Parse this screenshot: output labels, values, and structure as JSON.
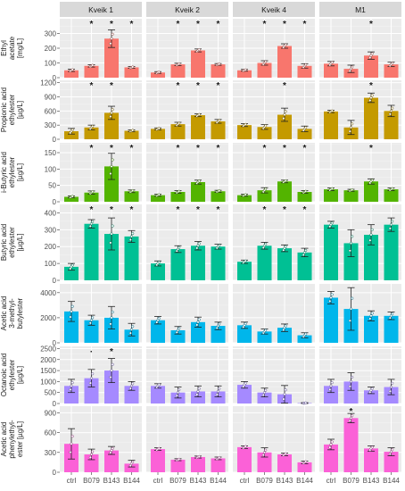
{
  "chart_data": {
    "type": "bar",
    "facets": [
      "Kveik 1",
      "Kveik 2",
      "Kveik 4",
      "M1"
    ],
    "categories": [
      "ctrl",
      "B079",
      "B143",
      "B144"
    ],
    "rows": [
      {
        "label_lines": [
          "Ethyl",
          "acetate",
          "[mg/L]"
        ],
        "color": "#F8766D",
        "ylim": [
          0,
          400
        ],
        "ticks": [
          0,
          100,
          200,
          300
        ],
        "tick_labels": [
          "0",
          "100",
          "200",
          "300"
        ],
        "panels": [
          {
            "values": [
              50,
              80,
              265,
              70
            ],
            "errors": [
              8,
              8,
              60,
              6
            ],
            "stars": [
              "",
              "*",
              "*",
              "*"
            ]
          },
          {
            "values": [
              35,
              90,
              185,
              90
            ],
            "errors": [
              6,
              8,
              10,
              6
            ],
            "stars": [
              "",
              "*",
              "*",
              "*"
            ]
          },
          {
            "values": [
              50,
              100,
              215,
              80
            ],
            "errors": [
              6,
              15,
              15,
              15
            ],
            "stars": [
              "",
              "*",
              "*",
              "*"
            ]
          },
          {
            "values": [
              95,
              60,
              150,
              90
            ],
            "errors": [
              15,
              25,
              25,
              15
            ],
            "stars": [
              "",
              "",
              "*",
              ""
            ]
          }
        ]
      },
      {
        "label_lines": [
          "Propionic acid",
          "ethylester",
          "[µg/L]"
        ],
        "color": "#C49A00",
        "ylim": [
          0,
          1250
        ],
        "ticks": [
          0,
          300,
          600,
          900,
          1200
        ],
        "tick_labels": [
          "0",
          "300",
          "600",
          "900",
          "1200"
        ],
        "panels": [
          {
            "values": [
              170,
              250,
              560,
              180
            ],
            "errors": [
              60,
              50,
              140,
              20
            ],
            "stars": [
              "",
              "*",
              "*",
              ""
            ]
          },
          {
            "values": [
              220,
              320,
              510,
              380
            ],
            "errors": [
              20,
              40,
              30,
              40
            ],
            "stars": [
              "",
              "*",
              "*",
              "*"
            ]
          },
          {
            "values": [
              300,
              260,
              520,
              220
            ],
            "errors": [
              30,
              50,
              140,
              60
            ],
            "stars": [
              "",
              "",
              "*",
              ""
            ]
          },
          {
            "values": [
              590,
              250,
              880,
              600
            ],
            "errors": [
              25,
              150,
              100,
              120
            ],
            "stars": [
              "",
              "",
              "*",
              ""
            ]
          }
        ]
      },
      {
        "label_lines": [
          "i-Butyric acid",
          "ethylester",
          "[µg/L]"
        ],
        "color": "#53B400",
        "ylim": [
          0,
          180
        ],
        "ticks": [
          0,
          50,
          100,
          150
        ],
        "tick_labels": [
          "0",
          "50",
          "100",
          "150"
        ],
        "panels": [
          {
            "values": [
              15,
              28,
              108,
              32
            ],
            "errors": [
              3,
              5,
              40,
              4
            ],
            "stars": [
              "",
              "*",
              "*",
              "*"
            ]
          },
          {
            "values": [
              20,
              30,
              60,
              32
            ],
            "errors": [
              3,
              4,
              6,
              3
            ],
            "stars": [
              "",
              "*",
              "*",
              "*"
            ]
          },
          {
            "values": [
              20,
              35,
              62,
              30
            ],
            "errors": [
              3,
              8,
              4,
              4
            ],
            "stars": [
              "",
              "*",
              "*",
              "*"
            ]
          },
          {
            "values": [
              38,
              35,
              62,
              38
            ],
            "errors": [
              4,
              3,
              8,
              4
            ],
            "stars": [
              "",
              "",
              "*",
              ""
            ]
          }
        ]
      },
      {
        "label_lines": [
          "Butyric acid",
          "ethylester",
          "[µg/L]"
        ],
        "color": "#00C094",
        "ylim": [
          0,
          450
        ],
        "ticks": [
          0,
          100,
          200,
          300,
          400
        ],
        "tick_labels": [
          "0",
          "100",
          "200",
          "300",
          "400"
        ],
        "panels": [
          {
            "values": [
              80,
              335,
              275,
              260
            ],
            "errors": [
              20,
              25,
              95,
              35
            ],
            "stars": [
              "",
              "*",
              "*",
              "*"
            ]
          },
          {
            "values": [
              100,
              185,
              205,
              200
            ],
            "errors": [
              15,
              20,
              25,
              15
            ],
            "stars": [
              "",
              "*",
              "*",
              "*"
            ]
          },
          {
            "values": [
              110,
              205,
              190,
              165
            ],
            "errors": [
              10,
              20,
              20,
              25
            ],
            "stars": [
              "",
              "*",
              "*",
              "*"
            ]
          },
          {
            "values": [
              330,
              220,
              270,
              330
            ],
            "errors": [
              20,
              80,
              60,
              40
            ],
            "stars": [
              "",
              "",
              "",
              ""
            ]
          }
        ]
      },
      {
        "label_lines": [
          "Acetic acid",
          "3-methyl-",
          "butylester"
        ],
        "color": "#00B6EB",
        "ylim": [
          0,
          4700
        ],
        "ticks": [
          0,
          2000,
          4000
        ],
        "tick_labels": [
          "0",
          "2000",
          "4000"
        ],
        "panels": [
          {
            "values": [
              2500,
              1800,
              2000,
              1050
            ],
            "errors": [
              800,
              400,
              900,
              500
            ],
            "stars": [
              "",
              "",
              "",
              ""
            ]
          },
          {
            "values": [
              1800,
              1000,
              1650,
              1350
            ],
            "errors": [
              300,
              300,
              400,
              300
            ],
            "stars": [
              "",
              "",
              "",
              ""
            ]
          },
          {
            "values": [
              1400,
              900,
              1200,
              600
            ],
            "errors": [
              250,
              200,
              300,
              200
            ],
            "stars": [
              "",
              "",
              "",
              ""
            ]
          },
          {
            "values": [
              3600,
              2700,
              2150,
              2150
            ],
            "errors": [
              500,
              1700,
              400,
              300
            ],
            "stars": [
              "",
              "",
              "",
              ""
            ]
          }
        ]
      },
      {
        "label_lines": [
          "Octanoic acid",
          "ethylester",
          "[µg/L]"
        ],
        "color": "#A58AFF",
        "ylim": [
          0,
          2600
        ],
        "ticks": [
          0,
          500,
          1000,
          1500,
          2000,
          2500
        ],
        "tick_labels": [
          "0",
          "500",
          "1000",
          "1500",
          "2000",
          "2500"
        ],
        "panels": [
          {
            "values": [
              800,
              1150,
              1500,
              800
            ],
            "errors": [
              300,
              400,
              550,
              200
            ],
            "stars": [
              "",
              "·",
              "*",
              ""
            ]
          },
          {
            "values": [
              800,
              500,
              550,
              550
            ],
            "errors": [
              100,
              250,
              250,
              250
            ],
            "stars": [
              "",
              "",
              "",
              ""
            ]
          },
          {
            "values": [
              850,
              500,
              420,
              20
            ],
            "errors": [
              150,
              200,
              400,
              20
            ],
            "stars": [
              "",
              "",
              "",
              ""
            ]
          },
          {
            "values": [
              800,
              1000,
              600,
              750
            ],
            "errors": [
              300,
              400,
              150,
              350
            ],
            "stars": [
              "",
              "",
              "",
              ""
            ]
          }
        ]
      },
      {
        "label_lines": [
          "Acetic acid",
          "phenylethyl-",
          "ester [µg/L]"
        ],
        "color": "#FB61D7",
        "ylim": [
          0,
          1000
        ],
        "ticks": [
          0,
          300,
          600,
          900
        ],
        "tick_labels": [
          "0",
          "300",
          "600",
          "900"
        ],
        "panels": [
          {
            "values": [
              430,
              270,
              330,
              130
            ],
            "errors": [
              230,
              80,
              60,
              50
            ],
            "stars": [
              "",
              "",
              "",
              ""
            ]
          },
          {
            "values": [
              350,
              190,
              230,
              210
            ],
            "errors": [
              20,
              15,
              15,
              20
            ],
            "stars": [
              "",
              "",
              "",
              ""
            ]
          },
          {
            "values": [
              380,
              300,
              270,
              150
            ],
            "errors": [
              20,
              70,
              20,
              20
            ],
            "stars": [
              "",
              "",
              "",
              ""
            ]
          },
          {
            "values": [
              420,
              820,
              360,
              310
            ],
            "errors": [
              80,
              70,
              40,
              60
            ],
            "stars": [
              "",
              "*",
              "",
              ""
            ]
          }
        ]
      }
    ]
  }
}
